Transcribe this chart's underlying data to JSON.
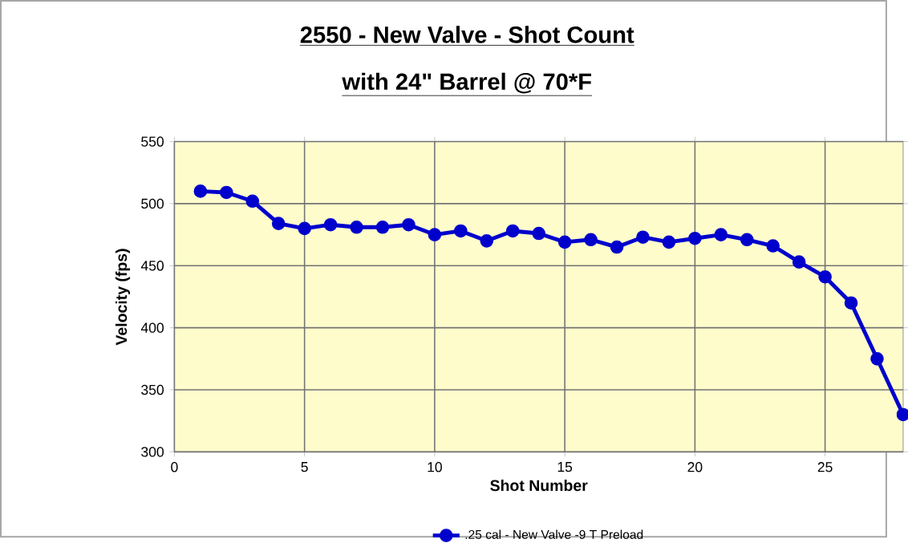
{
  "chart_data": {
    "type": "line",
    "title": "2550 - New Valve - Shot Count",
    "subtitle": "with  24\" Barrel @ 70*F",
    "xlabel": "Shot Number",
    "ylabel": "Velocity (fps)",
    "x": [
      1,
      2,
      3,
      4,
      5,
      6,
      7,
      8,
      9,
      10,
      11,
      12,
      13,
      14,
      15,
      16,
      17,
      18,
      19,
      20,
      21,
      22,
      23,
      24,
      25,
      26,
      27,
      28
    ],
    "series": [
      {
        "name": ".25 cal - New Valve -9 T Preload",
        "color": "#0000cc",
        "values": [
          510,
          509,
          502,
          484,
          480,
          483,
          481,
          481,
          483,
          475,
          478,
          470,
          478,
          476,
          469,
          471,
          465,
          473,
          469,
          472,
          475,
          471,
          466,
          453,
          441,
          420,
          375,
          330
        ]
      }
    ],
    "xlim": [
      0,
      28
    ],
    "xticks": [
      0,
      5,
      10,
      15,
      20,
      25
    ],
    "ylim": [
      300,
      550
    ],
    "yticks": [
      300,
      350,
      400,
      450,
      500,
      550
    ],
    "grid": true,
    "legend": "bottom",
    "marker": "circle",
    "line_style": "solid"
  }
}
